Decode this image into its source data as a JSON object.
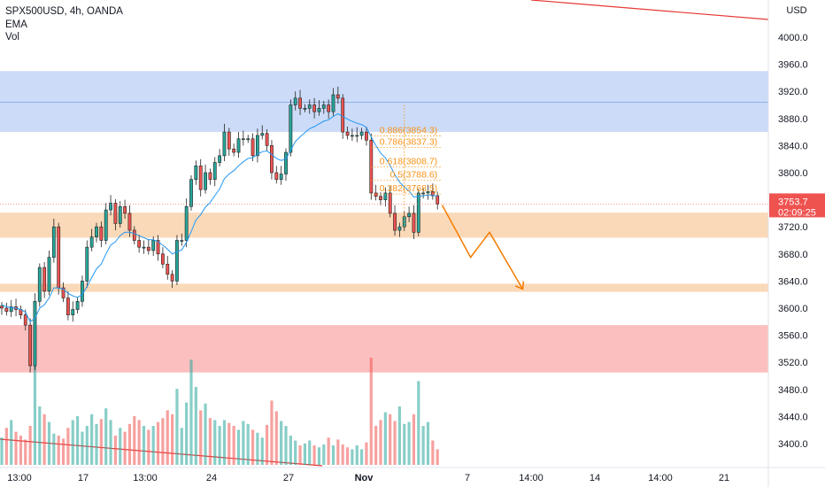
{
  "header": {
    "symbol": "SPX500USD",
    "interval": "4h",
    "source": "OANDA",
    "title": "SPX500USD, 4h, OANDA",
    "indicators": [
      "EMA",
      "Vol"
    ]
  },
  "colors": {
    "up": "#26a69a",
    "down": "#ef5350",
    "ema": "#2196f3",
    "supply_zone": "#c9d9f7",
    "demand_zone_1": "#fad7b5",
    "demand_zone_2": "#fad7b5",
    "red_zone": "#fbbcbc",
    "fib": "#f7931a",
    "trendline": "#e53935",
    "projection": "#f57c00",
    "price_badge": "#ef5350"
  },
  "chart_data": {
    "type": "candlestick",
    "currency": "USD",
    "y_axis_ticks": [
      4000,
      3960,
      3920,
      3880,
      3840,
      3800,
      3760,
      3720,
      3680,
      3640,
      3600,
      3560,
      3520,
      3480,
      3440,
      3400
    ],
    "y_axis_tick_labels": [
      "4000.0",
      "3960.0",
      "3920.0",
      "3880.0",
      "3840.0",
      "3800.0",
      "3760.0",
      "3720.0",
      "3680.0",
      "3640.0",
      "3600.0",
      "3560.0",
      "3520.0",
      "3480.0",
      "3440.0",
      "3400.0"
    ],
    "ylim": [
      3385,
      4030
    ],
    "x_axis_labels": [
      "13:00",
      "17",
      "13:00",
      "24",
      "27",
      "Nov",
      "7",
      "14:00",
      "14",
      "14:00",
      "21"
    ],
    "last_price": "3753.7",
    "countdown": "02:09:25",
    "closes": [
      3600,
      3595,
      3602,
      3598,
      3590,
      3575,
      3515,
      3610,
      3660,
      3625,
      3675,
      3720,
      3630,
      3615,
      3590,
      3598,
      3610,
      3640,
      3690,
      3705,
      3720,
      3700,
      3745,
      3755,
      3725,
      3750,
      3740,
      3715,
      3700,
      3690,
      3690,
      3685,
      3700,
      3680,
      3665,
      3650,
      3640,
      3700,
      3700,
      3750,
      3790,
      3810,
      3775,
      3800,
      3790,
      3815,
      3825,
      3860,
      3835,
      3830,
      3850,
      3850,
      3850,
      3825,
      3855,
      3858,
      3840,
      3800,
      3790,
      3798,
      3830,
      3900,
      3910,
      3895,
      3895,
      3900,
      3890,
      3895,
      3900,
      3890,
      3915,
      3910,
      3860,
      3855,
      3855,
      3855,
      3860,
      3848,
      3770,
      3765,
      3760,
      3770,
      3740,
      3715,
      3720,
      3735,
      3740,
      3712,
      3770,
      3770,
      3772,
      3766,
      3753.7
    ],
    "volumes": [
      28,
      38,
      46,
      34,
      30,
      26,
      40,
      110,
      60,
      52,
      44,
      32,
      30,
      27,
      38,
      46,
      50,
      34,
      40,
      52,
      42,
      47,
      58,
      46,
      30,
      38,
      34,
      42,
      50,
      46,
      40,
      36,
      40,
      44,
      48,
      56,
      52,
      78,
      38,
      64,
      108,
      80,
      56,
      63,
      48,
      46,
      40,
      46,
      43,
      40,
      36,
      45,
      42,
      36,
      33,
      28,
      41,
      66,
      55,
      45,
      40,
      30,
      25,
      20,
      22,
      25,
      20,
      18,
      21,
      28,
      20,
      26,
      21,
      18,
      16,
      20,
      16,
      23,
      110,
      40,
      46,
      54,
      52,
      45,
      60,
      42,
      44,
      52,
      86,
      40,
      44,
      25,
      16
    ],
    "ema_closes": [
      3605,
      3602,
      3601,
      3600,
      3598,
      3594,
      3580,
      3585,
      3600,
      3605,
      3615,
      3630,
      3630,
      3628,
      3622,
      3618,
      3616,
      3620,
      3632,
      3645,
      3658,
      3665,
      3680,
      3693,
      3698,
      3707,
      3712,
      3712,
      3710,
      3707,
      3704,
      3701,
      3701,
      3698,
      3693,
      3687,
      3680,
      3683,
      3686,
      3697,
      3713,
      3730,
      3738,
      3749,
      3756,
      3766,
      3776,
      3791,
      3798,
      3803,
      3810,
      3816,
      3821,
      3822,
      3827,
      3831,
      3832,
      3827,
      3821,
      3818,
      3820,
      3833,
      3846,
      3853,
      3859,
      3865,
      3868,
      3872,
      3876,
      3878,
      3883,
      3887,
      3883,
      3879,
      3876,
      3873,
      3871,
      3867,
      3853,
      3840,
      3829,
      3822,
      3811,
      3797,
      3786,
      3779,
      3773,
      3764,
      3765,
      3766,
      3767,
      3767,
      3765
    ],
    "zones": [
      {
        "name": "supply-zone",
        "top": 3950,
        "bottom": 3860
      },
      {
        "name": "demand-zone-upper",
        "top": 3741,
        "bottom": 3704
      },
      {
        "name": "demand-zone-lower",
        "top": 3636,
        "bottom": 3624
      },
      {
        "name": "red-zone",
        "top": 3575,
        "bottom": 3505
      }
    ],
    "supply_midline": 3904,
    "fibonacci": [
      {
        "label": "0.886(3854.3)",
        "value": 3854.3
      },
      {
        "label": "0.786(3837.3)",
        "value": 3837.3
      },
      {
        "label": "0.618(3808.7)",
        "value": 3808.7
      },
      {
        "label": "0.5(3788.6)",
        "value": 3788.6
      },
      {
        "label": "0.382(3768.5)",
        "value": 3768.5
      }
    ],
    "projection_path": [
      {
        "bar": 93,
        "price": 3752
      },
      {
        "bar": 99,
        "price": 3675
      },
      {
        "bar": 103,
        "price": 3712
      },
      {
        "bar": 110,
        "price": 3628
      }
    ]
  }
}
